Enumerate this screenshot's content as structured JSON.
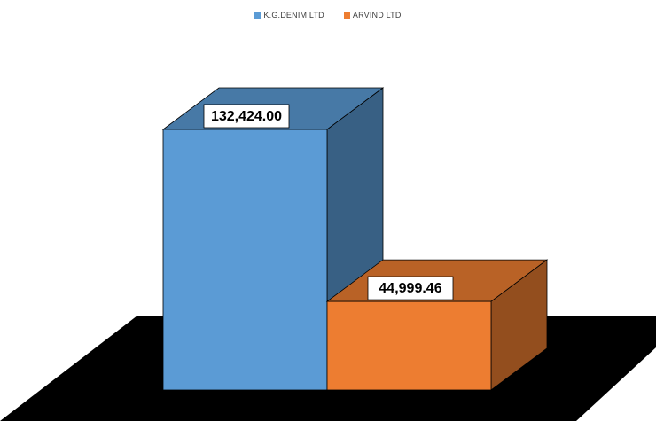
{
  "chart_data": {
    "type": "bar",
    "style": "3d-clustered-column",
    "categories": [
      ""
    ],
    "series": [
      {
        "name": "K.G.DENIM  LTD",
        "values": [
          132424.0
        ],
        "label": "132,424.00",
        "color": "#5b9bd5"
      },
      {
        "name": "ARVIND  LTD",
        "values": [
          44999.46
        ],
        "label": "44,999.46",
        "color": "#ed7d31"
      }
    ],
    "title": "",
    "xlabel": "",
    "ylabel": "",
    "ylim": [
      0,
      132424
    ],
    "grid": false,
    "legend_position": "top",
    "floor_color": "#000000"
  }
}
